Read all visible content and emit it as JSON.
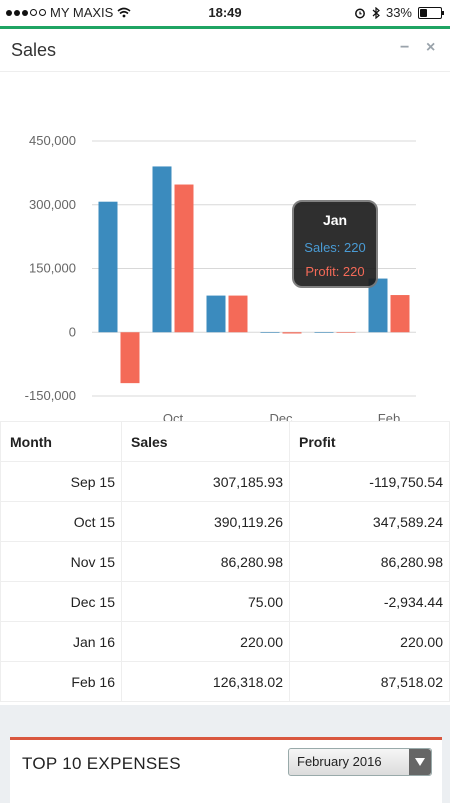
{
  "status": {
    "carrier": "MY MAXIS",
    "time": "18:49",
    "battery": "33%"
  },
  "panel": {
    "title": "Sales",
    "minimize": "−",
    "close": "×"
  },
  "chart_data": {
    "type": "bar",
    "categories": [
      "Sep 15",
      "Oct 15",
      "Nov 15",
      "Dec 15",
      "Jan 16",
      "Feb 16"
    ],
    "x_tick_labels": [
      "Oct",
      "Dec",
      "Feb"
    ],
    "series": [
      {
        "name": "Sales",
        "color": "#3b8bbe",
        "values": [
          307185.93,
          390119.26,
          86280.98,
          75.0,
          220.0,
          126318.02
        ]
      },
      {
        "name": "Profit",
        "color": "#f46a58",
        "values": [
          -119750.54,
          347589.24,
          86280.98,
          -2934.44,
          220.0,
          87518.02
        ]
      }
    ],
    "y_ticks": [
      "450,000",
      "300,000",
      "150,000",
      "0",
      "-150,000"
    ],
    "ylim": [
      -150000,
      450000
    ],
    "grid": true,
    "tooltip": {
      "title": "Jan",
      "sales": "Sales: 220",
      "profit": "Profit: 220"
    }
  },
  "table": {
    "headers": [
      "Month",
      "Sales",
      "Profit"
    ],
    "rows": [
      [
        "Sep 15",
        "307,185.93",
        "-119,750.54"
      ],
      [
        "Oct 15",
        "390,119.26",
        "347,589.24"
      ],
      [
        "Nov 15",
        "86,280.98",
        "86,280.98"
      ],
      [
        "Dec 15",
        "75.00",
        "-2,934.44"
      ],
      [
        "Jan 16",
        "220.00",
        "220.00"
      ],
      [
        "Feb 16",
        "126,318.02",
        "87,518.02"
      ]
    ]
  },
  "expenses": {
    "title": "TOP 10 EXPENSES",
    "selected": "February 2016"
  }
}
